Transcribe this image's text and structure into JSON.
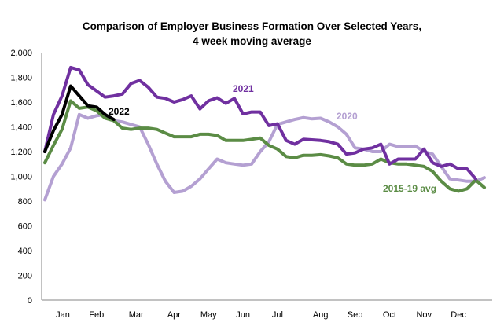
{
  "chart_data": {
    "type": "line",
    "title_line1": "Comparison of Employer Business Formation Over Selected Years,",
    "title_line2": "4 week moving average",
    "xlabel": "",
    "ylabel": "",
    "ylim": [
      0,
      2000
    ],
    "yticks": [
      "0",
      "200",
      "400",
      "600",
      "800",
      "1,000",
      "1,200",
      "1,400",
      "1,600",
      "1,800",
      "2,000"
    ],
    "xtick_labels": [
      "Jan",
      "Feb",
      "Mar",
      "Apr",
      "May",
      "Jun",
      "Jul",
      "Aug",
      "Sep",
      "Oct",
      "Nov",
      "Dec"
    ],
    "x_unit": "week",
    "grid": false,
    "legend": "inline labels",
    "series": [
      {
        "name": "2020",
        "color": "#b4a0d2",
        "values": [
          810,
          1000,
          1100,
          1230,
          1500,
          1470,
          1490,
          1500,
          1450,
          1440,
          1420,
          1400,
          1260,
          1100,
          960,
          870,
          880,
          920,
          980,
          1060,
          1140,
          1110,
          1100,
          1090,
          1100,
          1200,
          1280,
          1420,
          1440,
          1460,
          1475,
          1465,
          1470,
          1440,
          1400,
          1340,
          1230,
          1220,
          1200,
          1200,
          1260,
          1240,
          1240,
          1245,
          1200,
          1180,
          1080,
          980,
          970,
          960,
          960,
          990
        ]
      },
      {
        "name": "2015-19 avg",
        "color": "#5b8c45",
        "values": [
          1110,
          1250,
          1380,
          1610,
          1550,
          1560,
          1530,
          1470,
          1450,
          1390,
          1380,
          1390,
          1390,
          1380,
          1350,
          1320,
          1320,
          1320,
          1340,
          1340,
          1330,
          1290,
          1290,
          1290,
          1300,
          1310,
          1250,
          1220,
          1160,
          1150,
          1170,
          1170,
          1175,
          1165,
          1150,
          1100,
          1090,
          1090,
          1100,
          1140,
          1110,
          1100,
          1100,
          1090,
          1080,
          1040,
          960,
          900,
          880,
          900,
          970,
          910
        ]
      },
      {
        "name": "2021",
        "color": "#7030a0",
        "values": [
          1200,
          1500,
          1650,
          1880,
          1860,
          1740,
          1690,
          1640,
          1650,
          1665,
          1750,
          1775,
          1720,
          1640,
          1630,
          1600,
          1620,
          1650,
          1545,
          1610,
          1635,
          1590,
          1630,
          1505,
          1520,
          1520,
          1410,
          1425,
          1290,
          1260,
          1300,
          1295,
          1290,
          1280,
          1260,
          1180,
          1190,
          1220,
          1230,
          1260,
          1100,
          1140,
          1140,
          1140,
          1220,
          1110,
          1080,
          1100,
          1060,
          1060,
          980
        ]
      },
      {
        "name": "2022",
        "color": "#000000",
        "values": [
          1200,
          1370,
          1500,
          1730,
          1650,
          1570,
          1560,
          1500,
          1460
        ]
      }
    ]
  }
}
